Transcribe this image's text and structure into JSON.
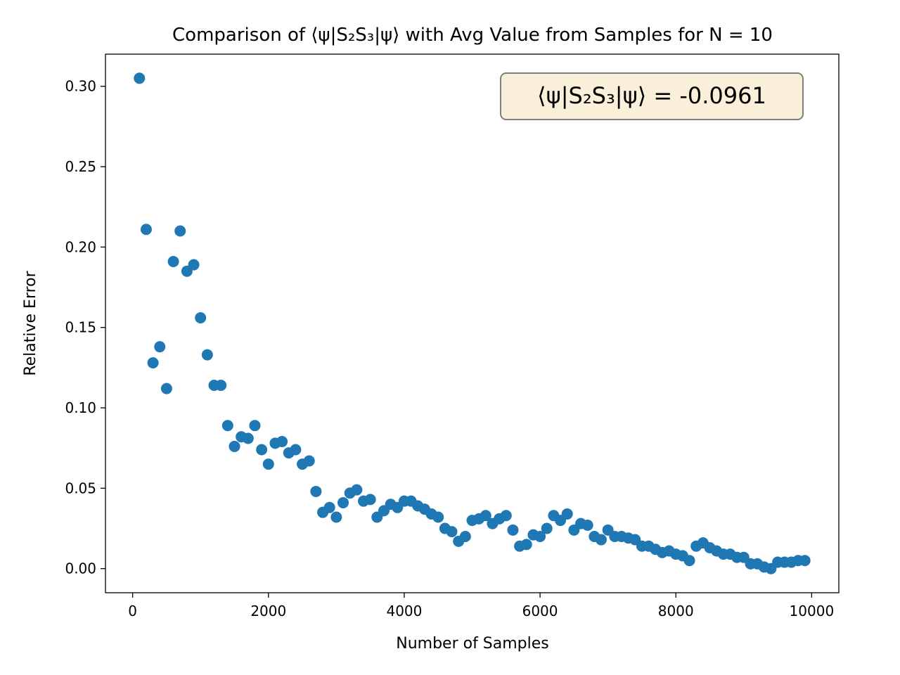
{
  "chart_data": {
    "type": "scatter",
    "title": "Comparison of ⟨ψ|S₂S₃|ψ⟩ with Avg Value from Samples for N = 10",
    "xlabel": "Number of Samples",
    "ylabel": "Relative Error",
    "xlim": [
      -400,
      10400
    ],
    "ylim": [
      -0.015,
      0.32
    ],
    "xticks": [
      0,
      2000,
      4000,
      6000,
      8000,
      10000
    ],
    "xtick_labels": [
      "0",
      "2000",
      "4000",
      "6000",
      "8000",
      "10000"
    ],
    "yticks": [
      0.0,
      0.05,
      0.1,
      0.15,
      0.2,
      0.25,
      0.3
    ],
    "ytick_labels": [
      "0.00",
      "0.05",
      "0.10",
      "0.15",
      "0.20",
      "0.25",
      "0.30"
    ],
    "grid": false,
    "annotation": {
      "text": "⟨ψ|S₂S₃|ψ⟩ = -0.0961",
      "placement": "top-right",
      "box_color": "#faefd9",
      "edge_color": "#7f7f7f"
    },
    "marker_color": "#1f77b4",
    "series": [
      {
        "x": [
          100,
          200,
          300,
          400,
          500,
          600,
          700,
          800,
          900,
          1000,
          1100,
          1200,
          1300,
          1400,
          1500,
          1600,
          1700,
          1800,
          1900,
          2000,
          2100,
          2200,
          2300,
          2400,
          2500,
          2600,
          2700,
          2800,
          2900,
          3000,
          3100,
          3200,
          3300,
          3400,
          3500,
          3600,
          3700,
          3800,
          3900,
          4000,
          4100,
          4200,
          4300,
          4400,
          4500,
          4600,
          4700,
          4800,
          4900,
          5000,
          5100,
          5200,
          5300,
          5400,
          5500,
          5600,
          5700,
          5800,
          5900,
          6000,
          6100,
          6200,
          6300,
          6400,
          6500,
          6600,
          6700,
          6800,
          6900,
          7000,
          7100,
          7200,
          7300,
          7400,
          7500,
          7600,
          7700,
          7800,
          7900,
          8000,
          8100,
          8200,
          8300,
          8400,
          8500,
          8600,
          8700,
          8800,
          8900,
          9000,
          9100,
          9200,
          9300,
          9400,
          9500,
          9600,
          9700,
          9800,
          9900
        ],
        "y": [
          0.305,
          0.211,
          0.128,
          0.138,
          0.112,
          0.191,
          0.21,
          0.185,
          0.189,
          0.156,
          0.133,
          0.114,
          0.114,
          0.089,
          0.076,
          0.082,
          0.081,
          0.089,
          0.074,
          0.065,
          0.078,
          0.079,
          0.072,
          0.074,
          0.065,
          0.067,
          0.048,
          0.035,
          0.038,
          0.032,
          0.041,
          0.047,
          0.049,
          0.042,
          0.043,
          0.032,
          0.036,
          0.04,
          0.038,
          0.042,
          0.042,
          0.039,
          0.037,
          0.034,
          0.032,
          0.025,
          0.023,
          0.017,
          0.02,
          0.03,
          0.031,
          0.033,
          0.028,
          0.031,
          0.033,
          0.024,
          0.014,
          0.015,
          0.021,
          0.02,
          0.025,
          0.033,
          0.03,
          0.034,
          0.024,
          0.028,
          0.027,
          0.02,
          0.018,
          0.024,
          0.02,
          0.02,
          0.019,
          0.018,
          0.014,
          0.014,
          0.012,
          0.01,
          0.011,
          0.009,
          0.008,
          0.005,
          0.014,
          0.016,
          0.013,
          0.011,
          0.009,
          0.009,
          0.007,
          0.007,
          0.003,
          0.003,
          0.001,
          0.0,
          0.004,
          0.004,
          0.004,
          0.005,
          0.005
        ]
      }
    ]
  }
}
